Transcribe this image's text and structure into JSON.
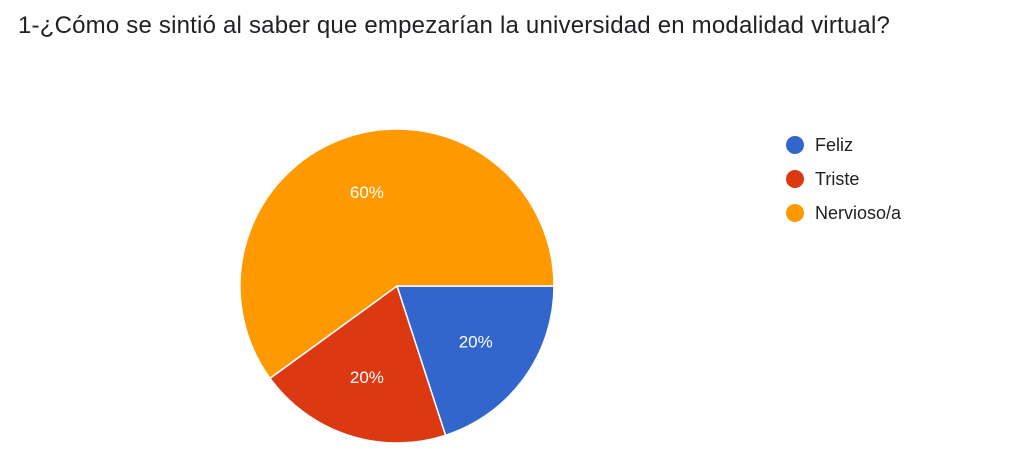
{
  "question": {
    "title": "1-¿Cómo se sintió al saber que empezarían la universidad en modalidad virtual?"
  },
  "chart_data": {
    "type": "pie",
    "title": "1-¿Cómo se sintió al saber que empezarían la universidad en modalidad virtual?",
    "categories": [
      "Feliz",
      "Triste",
      "Nervioso/a"
    ],
    "values": [
      20,
      20,
      60
    ],
    "labels": [
      "20%",
      "20%",
      "60%"
    ],
    "colors": [
      "#3366cc",
      "#dc3912",
      "#ff9900"
    ],
    "start_angle_deg": 90,
    "direction": "clockwise",
    "legend_position": "right"
  }
}
